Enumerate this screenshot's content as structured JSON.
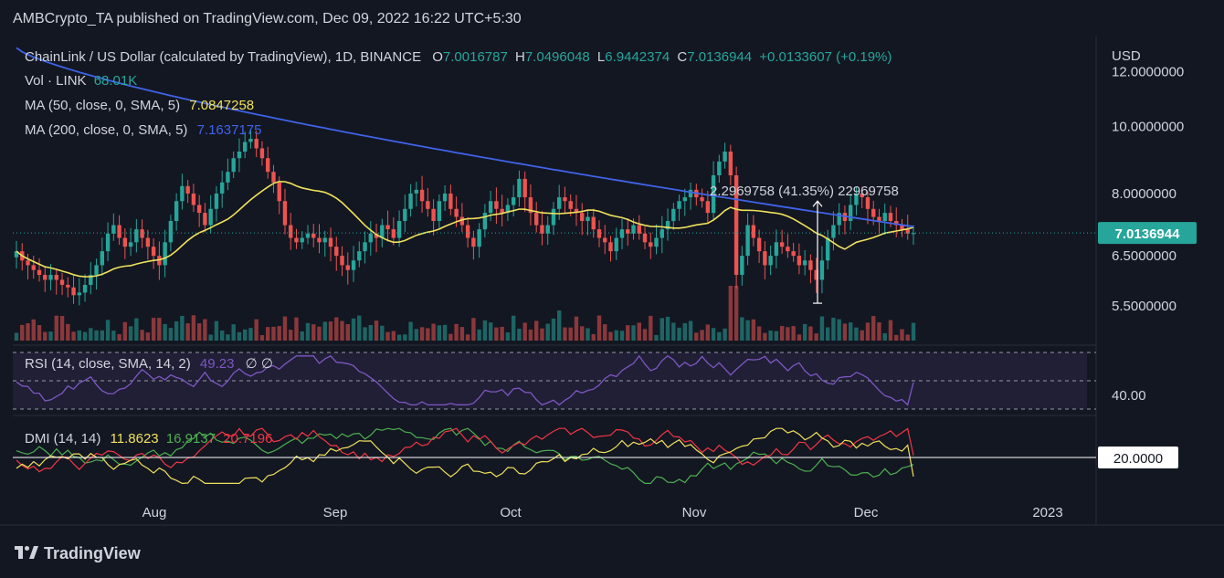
{
  "header": {
    "publisher": "AMBCrypto_TA published on TradingView.com, Dec 09, 2022 16:22 UTC+5:30"
  },
  "legend": {
    "symbol": "ChainLink / US Dollar (calculated by TradingView), 1D, BINANCE",
    "o_label": "O",
    "o_value": "7.0016787",
    "h_label": "H",
    "h_value": "7.0496048",
    "l_label": "L",
    "l_value": "6.9442374",
    "c_label": "C",
    "c_value": "7.0136944",
    "change": "+0.0133607 (+0.19%)",
    "vol_label": "Vol · LINK",
    "vol_value": "68.01K",
    "ma50_label": "MA (50, close, 0, SMA, 5)",
    "ma50_value": "7.0847258",
    "ma200_label": "MA (200, close, 0, SMA, 5)",
    "ma200_value": "7.1637175",
    "rsi_label": "RSI (14, close, SMA, 14, 2)",
    "rsi_value": "49.23",
    "rsi_extra": "∅ ∅",
    "dmi_label": "DMI (14, 14)",
    "dmi_plus": "11.8623",
    "dmi_minus": "16.9137",
    "dmi_adx": "20.7196"
  },
  "price_axis": {
    "currency": "USD",
    "ticks": [
      "12.0000000",
      "10.0000000",
      "8.0000000",
      "6.5000000",
      "5.5000000"
    ],
    "current": "7.0136944"
  },
  "rsi_axis": {
    "tick": "40.00"
  },
  "dmi_axis": {
    "level": "20.0000"
  },
  "time_axis": [
    "Aug",
    "Sep",
    "Oct",
    "Nov",
    "Dec",
    "2023"
  ],
  "measure": {
    "text": "2.2969758 (41.35%) 22969758"
  },
  "footer": {
    "brand": "TradingView"
  },
  "colors": {
    "bg": "#131722",
    "up": "#26a69a",
    "down": "#ef5350",
    "ma50": "#f0e15c",
    "ma200": "#3f63e8",
    "rsi": "#7e57c2",
    "dmi_plus": "#4caf50",
    "dmi_minus": "#f23645",
    "dmi_adx": "#f0e15c"
  },
  "chart_data": {
    "type": "candlestick",
    "x_start": "2022-07-01",
    "interval": "1D",
    "symbol": "LINK/USD",
    "y_range": [
      4.9,
      13.5
    ],
    "y_scale": "log",
    "axis_ticks": [
      12.0,
      10.0,
      8.0,
      6.5,
      5.5
    ],
    "last_close": 7.0136944,
    "ma50_last": 7.0847258,
    "ma200_last": 7.1637175,
    "rsi_last": 49.23,
    "dmi_last": {
      "plus_di": 11.8623,
      "minus_di": 16.9137,
      "adx": 20.7196
    },
    "close": [
      6.6,
      6.4,
      6.3,
      6.2,
      6.1,
      6.0,
      6.1,
      6.0,
      5.9,
      5.85,
      5.7,
      5.75,
      5.9,
      6.1,
      6.3,
      6.6,
      7.0,
      7.2,
      6.9,
      6.7,
      6.8,
      7.1,
      6.9,
      6.7,
      6.5,
      6.3,
      6.8,
      7.3,
      7.8,
      8.2,
      8.0,
      7.7,
      7.5,
      7.2,
      7.6,
      8.0,
      8.3,
      8.6,
      9.0,
      9.2,
      9.5,
      9.6,
      9.3,
      9.0,
      8.6,
      8.3,
      7.8,
      7.2,
      6.9,
      6.8,
      6.9,
      7.0,
      6.9,
      6.8,
      6.9,
      6.7,
      6.5,
      6.3,
      6.2,
      6.4,
      6.6,
      6.8,
      7.0,
      6.9,
      7.2,
      7.1,
      6.9,
      7.3,
      7.6,
      8.0,
      8.1,
      7.8,
      7.6,
      7.3,
      7.8,
      8.0,
      7.6,
      7.4,
      7.2,
      6.9,
      6.7,
      7.1,
      7.5,
      7.8,
      7.6,
      7.5,
      7.7,
      7.9,
      8.4,
      7.9,
      7.5,
      7.2,
      7.0,
      7.2,
      7.6,
      7.9,
      7.8,
      7.6,
      7.5,
      7.3,
      7.4,
      7.1,
      6.9,
      6.8,
      6.6,
      6.9,
      7.1,
      7.0,
      7.2,
      7.0,
      6.8,
      6.7,
      6.9,
      7.1,
      7.3,
      7.6,
      7.8,
      7.9,
      8.1,
      7.9,
      7.8,
      7.5,
      8.5,
      8.9,
      9.2,
      8.5,
      6.1,
      6.5,
      7.2,
      6.9,
      6.6,
      6.3,
      6.5,
      6.8,
      6.7,
      6.6,
      6.5,
      6.3,
      6.4,
      6.2,
      6.0,
      6.4,
      6.9,
      7.2,
      7.5,
      7.3,
      7.7,
      8.0,
      7.9,
      7.6,
      7.4,
      7.3,
      7.5,
      7.3,
      7.2,
      7.1,
      7.0,
      7.01
    ]
  }
}
